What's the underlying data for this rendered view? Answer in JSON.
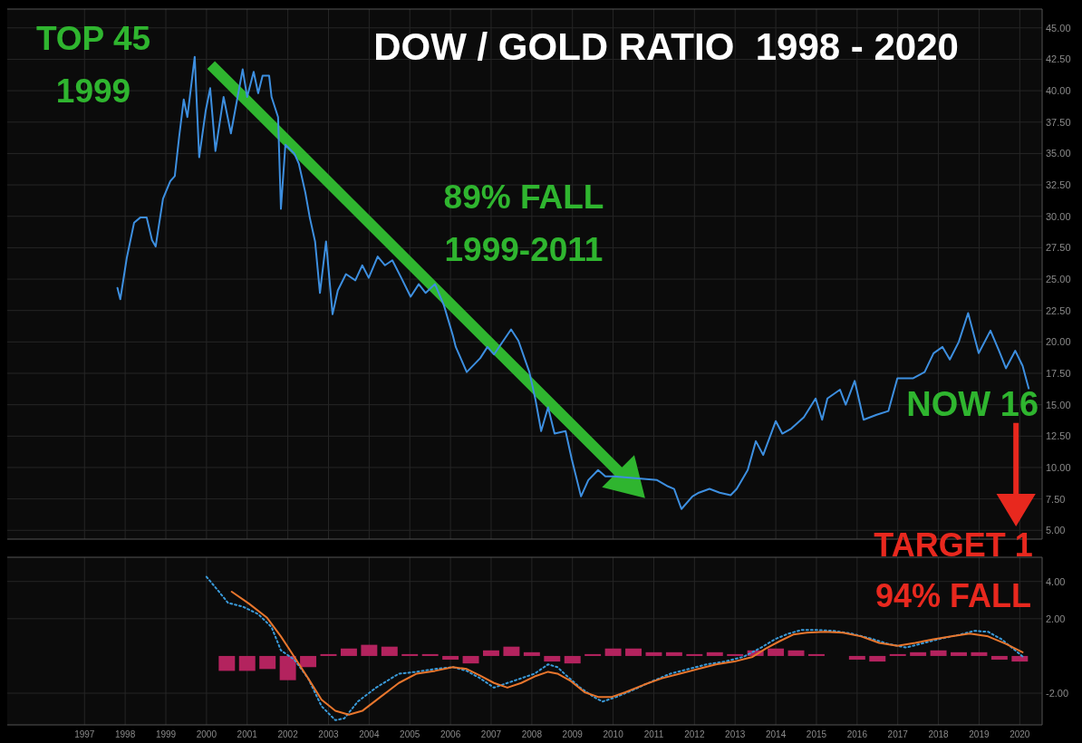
{
  "chart_data": [
    {
      "type": "line",
      "title": "DOW / GOLD RATIO  1998 - 2020",
      "xlim": [
        1995.1,
        2020.55
      ],
      "xticks": [
        1997,
        1998,
        1999,
        2000,
        2001,
        2002,
        2003,
        2004,
        2005,
        2006,
        2007,
        2008,
        2009,
        2010,
        2011,
        2012,
        2013,
        2014,
        2015,
        2016,
        2017,
        2018,
        2019,
        2020
      ],
      "ylim": [
        4.3,
        46.5
      ],
      "yticks": [
        {
          "value": 5,
          "label": "5.00"
        },
        {
          "value": 7.5,
          "label": "7.50"
        },
        {
          "value": 10,
          "label": "10.00"
        },
        {
          "value": 12.5,
          "label": "12.50"
        },
        {
          "value": 15,
          "label": "15.00"
        },
        {
          "value": 17.5,
          "label": "17.50"
        },
        {
          "value": 20,
          "label": "20.00"
        },
        {
          "value": 22.5,
          "label": "22.50"
        },
        {
          "value": 25,
          "label": "25.00"
        },
        {
          "value": 27.5,
          "label": "27.50"
        },
        {
          "value": 30,
          "label": "30.00"
        },
        {
          "value": 32.5,
          "label": "32.50"
        },
        {
          "value": 35,
          "label": "35.00"
        },
        {
          "value": 37.5,
          "label": "37.50"
        },
        {
          "value": 40,
          "label": "40.00"
        },
        {
          "value": 42.5,
          "label": "42.50"
        },
        {
          "value": 45,
          "label": "45.00"
        }
      ],
      "tick_labels": "y",
      "grid": true,
      "annotations": [
        {
          "text": "TOP 45\n1999",
          "x": 1999.71,
          "y": 42.7
        },
        "89% FALL\n1999-2011",
        {
          "text": "NOW 16",
          "x": 2020.22,
          "y": 16.3
        },
        "TARGET 1\n94% FALL"
      ],
      "series": [
        {
          "color": "#3d8fe0",
          "x": [
            1997.81,
            1997.88,
            1998.04,
            1998.22,
            1998.37,
            1998.53,
            1998.66,
            1998.75,
            1998.93,
            1999.11,
            1999.22,
            1999.33,
            1999.44,
            1999.53,
            1999.71,
            1999.82,
            1999.98,
            2000.09,
            2000.22,
            2000.42,
            2000.6,
            2000.89,
            2001.0,
            2001.16,
            2001.27,
            2001.38,
            2001.54,
            2001.6,
            2001.76,
            2001.83,
            2001.94,
            2002.16,
            2002.27,
            2002.43,
            2002.54,
            2002.67,
            2002.79,
            2002.94,
            2003.1,
            2003.23,
            2003.43,
            2003.66,
            2003.83,
            2003.99,
            2004.21,
            2004.39,
            2004.57,
            2004.79,
            2005.02,
            2005.22,
            2005.39,
            2005.62,
            2005.84,
            2006.06,
            2006.13,
            2006.4,
            2006.73,
            2006.91,
            2007.07,
            2007.49,
            2007.67,
            2007.94,
            2008.09,
            2008.23,
            2008.4,
            2008.56,
            2008.83,
            2008.98,
            2009.21,
            2009.39,
            2009.63,
            2009.81,
            2010.01,
            2011.08,
            2011.35,
            2011.5,
            2011.68,
            2011.95,
            2012.11,
            2012.37,
            2012.62,
            2012.89,
            2013.04,
            2013.31,
            2013.51,
            2013.69,
            2014.0,
            2014.16,
            2014.38,
            2014.69,
            2014.98,
            2015.14,
            2015.27,
            2015.58,
            2015.72,
            2015.94,
            2016.16,
            2016.48,
            2016.77,
            2016.99,
            2017.37,
            2017.66,
            2017.88,
            2018.1,
            2018.28,
            2018.5,
            2018.73,
            2018.99,
            2019.28,
            2019.49,
            2019.66,
            2019.89,
            2020.07,
            2020.22
          ],
          "values": [
            24.3,
            23.4,
            26.7,
            29.5,
            29.9,
            29.9,
            28.1,
            27.6,
            31.4,
            32.8,
            33.2,
            36.4,
            39.3,
            37.9,
            42.7,
            34.7,
            38.4,
            40.2,
            35.2,
            39.5,
            36.6,
            41.7,
            39.5,
            41.5,
            39.8,
            41.2,
            41.2,
            39.5,
            37.9,
            30.6,
            35.7,
            35.0,
            34.2,
            31.9,
            29.9,
            28.0,
            23.9,
            28.0,
            22.2,
            24.1,
            25.4,
            24.9,
            26.1,
            25.1,
            26.8,
            26.1,
            26.5,
            25.1,
            23.6,
            24.6,
            23.9,
            24.6,
            22.9,
            20.5,
            19.6,
            17.6,
            18.7,
            19.6,
            19.0,
            21.0,
            20.1,
            17.6,
            15.4,
            12.9,
            14.8,
            12.7,
            12.9,
            10.7,
            7.7,
            9.0,
            9.8,
            9.3,
            9.3,
            9.0,
            8.5,
            8.3,
            6.7,
            7.7,
            8.0,
            8.3,
            8.0,
            7.8,
            8.3,
            9.8,
            12.1,
            11.0,
            13.7,
            12.7,
            13.1,
            14.0,
            15.5,
            13.8,
            15.5,
            16.2,
            15.0,
            16.9,
            13.8,
            14.2,
            14.5,
            17.1,
            17.1,
            17.6,
            19.1,
            19.6,
            18.6,
            20.0,
            22.3,
            19.1,
            20.9,
            19.3,
            17.9,
            19.3,
            18.1,
            16.3
          ]
        }
      ]
    },
    {
      "type": "line",
      "xlim": [
        1995.1,
        2020.55
      ],
      "xticks": [
        1997,
        1998,
        1999,
        2000,
        2001,
        2002,
        2003,
        2004,
        2005,
        2006,
        2007,
        2008,
        2009,
        2010,
        2011,
        2012,
        2013,
        2014,
        2015,
        2016,
        2017,
        2018,
        2019,
        2020
      ],
      "ylim": [
        -3.7,
        5.3
      ],
      "yticks": [
        {
          "value": -2,
          "label": "-2.00"
        },
        {
          "value": 2,
          "label": "2.00"
        },
        {
          "value": 4,
          "label": "4.00"
        }
      ],
      "grid": true,
      "series": [
        {
          "type": "bar",
          "color": "#b3235e",
          "x": [
            2000.5,
            2001,
            2001.5,
            2002,
            2002.5,
            2003,
            2003.5,
            2004,
            2004.5,
            2005,
            2005.5,
            2006,
            2006.5,
            2007,
            2007.5,
            2008,
            2008.5,
            2009,
            2009.5,
            2010,
            2010.5,
            2011,
            2011.5,
            2012,
            2012.5,
            2013,
            2013.5,
            2014,
            2014.5,
            2015,
            2015.5,
            2016,
            2016.5,
            2017,
            2017.5,
            2018,
            2018.5,
            2019,
            2019.5,
            2020
          ],
          "values": [
            -0.8,
            -0.8,
            -0.7,
            -1.3,
            -0.6,
            0.1,
            0.4,
            0.6,
            0.5,
            0.1,
            0.1,
            -0.2,
            -0.4,
            0.3,
            0.5,
            0.2,
            -0.3,
            -0.4,
            0.1,
            0.4,
            0.4,
            0.2,
            0.2,
            0.1,
            0.2,
            0.1,
            0.3,
            0.4,
            0.3,
            0.1,
            0.0,
            -0.2,
            -0.3,
            0.1,
            0.2,
            0.3,
            0.2,
            0.2,
            -0.2,
            -0.3
          ]
        },
        {
          "line_style": "dotted",
          "color": "#3a9ad9",
          "x": [
            2000.0,
            2000.27,
            2000.53,
            2000.89,
            2001.27,
            2001.6,
            2001.83,
            2002.16,
            2002.5,
            2002.83,
            2003.17,
            2003.39,
            2003.72,
            2004.17,
            2004.73,
            2005.17,
            2005.62,
            2006.06,
            2006.4,
            2006.73,
            2007.07,
            2007.4,
            2007.74,
            2008.07,
            2008.4,
            2008.63,
            2008.85,
            2009.19,
            2009.52,
            2009.74,
            2010.08,
            2010.52,
            2010.97,
            2011.41,
            2011.86,
            2012.3,
            2012.75,
            2013.2,
            2013.64,
            2013.98,
            2014.31,
            2014.65,
            2014.98,
            2015.43,
            2015.87,
            2016.32,
            2016.76,
            2017.21,
            2017.65,
            2018.1,
            2018.54,
            2018.88,
            2019.22,
            2019.55,
            2019.89,
            2020.11
          ],
          "values": [
            4.25,
            3.55,
            2.85,
            2.65,
            2.25,
            1.55,
            0.3,
            -0.2,
            -1.2,
            -2.7,
            -3.45,
            -3.35,
            -2.45,
            -1.7,
            -0.95,
            -0.85,
            -0.7,
            -0.6,
            -0.8,
            -1.2,
            -1.7,
            -1.45,
            -1.2,
            -0.95,
            -0.45,
            -0.6,
            -1.05,
            -1.7,
            -2.2,
            -2.45,
            -2.2,
            -1.8,
            -1.35,
            -0.95,
            -0.7,
            -0.45,
            -0.3,
            -0.05,
            0.45,
            0.9,
            1.2,
            1.4,
            1.4,
            1.35,
            1.2,
            0.95,
            0.65,
            0.45,
            0.7,
            0.95,
            1.15,
            1.35,
            1.3,
            0.9,
            0.3,
            -0.1
          ]
        },
        {
          "line_style": "solid",
          "color": "#e8762d",
          "x": [
            2000.62,
            2001.05,
            2001.49,
            2001.83,
            2002.16,
            2002.5,
            2002.83,
            2003.17,
            2003.5,
            2003.83,
            2004.28,
            2004.73,
            2005.17,
            2005.62,
            2006.06,
            2006.4,
            2006.73,
            2007.07,
            2007.4,
            2007.74,
            2008.07,
            2008.4,
            2008.63,
            2008.96,
            2009.3,
            2009.63,
            2009.97,
            2010.3,
            2010.75,
            2011.2,
            2011.64,
            2012.09,
            2012.53,
            2012.98,
            2013.43,
            2013.76,
            2014.1,
            2014.43,
            2014.76,
            2015.21,
            2015.65,
            2016.1,
            2016.54,
            2016.99,
            2017.43,
            2017.88,
            2018.32,
            2018.77,
            2019.22,
            2019.66,
            2020.07
          ],
          "values": [
            3.45,
            2.8,
            2.05,
            1.05,
            -0.05,
            -1.2,
            -2.35,
            -2.95,
            -3.15,
            -2.95,
            -2.2,
            -1.45,
            -0.95,
            -0.8,
            -0.6,
            -0.7,
            -1.05,
            -1.45,
            -1.7,
            -1.45,
            -1.1,
            -0.85,
            -0.95,
            -1.35,
            -1.95,
            -2.2,
            -2.2,
            -1.95,
            -1.55,
            -1.2,
            -0.95,
            -0.7,
            -0.45,
            -0.3,
            -0.05,
            0.4,
            0.8,
            1.15,
            1.25,
            1.3,
            1.25,
            1.05,
            0.7,
            0.55,
            0.7,
            0.9,
            1.05,
            1.2,
            1.05,
            0.65,
            0.2
          ]
        }
      ]
    }
  ]
}
